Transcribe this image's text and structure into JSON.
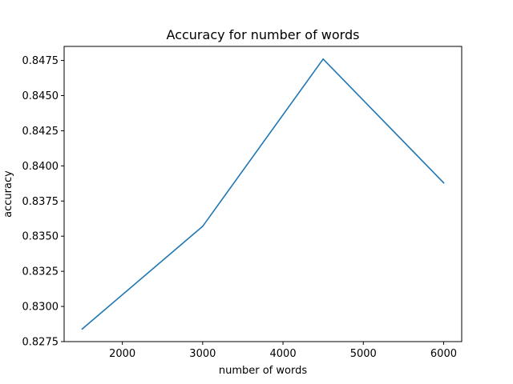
{
  "chart_data": {
    "type": "line",
    "title": "Accuracy for number of words",
    "xlabel": "number of words",
    "ylabel": "accuracy",
    "x": [
      1500,
      3000,
      4500,
      6000
    ],
    "series": [
      {
        "values": [
          0.8284,
          0.8357,
          0.8476,
          0.8388
        ],
        "color": "#1f77b4"
      }
    ],
    "xlim": [
      1275,
      6225
    ],
    "ylim": [
      0.8275,
      0.8485
    ],
    "xticks": [
      2000,
      3000,
      4000,
      5000,
      6000
    ],
    "xtick_labels": [
      "2000",
      "3000",
      "4000",
      "5000",
      "6000"
    ],
    "yticks": [
      0.8275,
      0.83,
      0.8325,
      0.835,
      0.8375,
      0.84,
      0.8425,
      0.845,
      0.8475
    ],
    "ytick_labels": [
      "0.8275",
      "0.8300",
      "0.8325",
      "0.8350",
      "0.8375",
      "0.8400",
      "0.8425",
      "0.8450",
      "0.8475"
    ],
    "grid": false,
    "legend": "none"
  }
}
